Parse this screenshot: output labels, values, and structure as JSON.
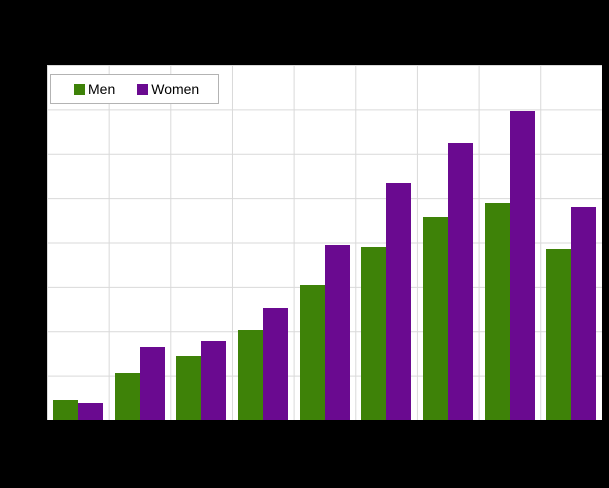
{
  "figure": {
    "background_color": "#000000",
    "plot_background_color": "#ffffff",
    "gridline_color": "#d9d9d9",
    "axis_tick_labels_visible": false,
    "title_visible": false
  },
  "legend": {
    "position": "top-left",
    "border_color": "#b3b3b3",
    "items": [
      {
        "label": "Men",
        "color": "#3E8208"
      },
      {
        "label": "Women",
        "color": "#6A0A90"
      }
    ]
  },
  "chart_data": {
    "type": "bar",
    "title": "",
    "xlabel": "",
    "ylabel": "",
    "categories": [
      "",
      "",
      "",
      "",
      "",
      "",
      "",
      "",
      ""
    ],
    "series": [
      {
        "name": "Men",
        "color": "#3E8208",
        "values": [
          5.7,
          13.3,
          18.1,
          25.4,
          38.0,
          48.8,
          57.3,
          61.0,
          48.2
        ]
      },
      {
        "name": "Women",
        "color": "#6A0A90",
        "values": [
          4.9,
          20.7,
          22.3,
          31.5,
          49.3,
          66.7,
          77.9,
          87.1,
          59.9
        ]
      }
    ],
    "units": "percent of y-axis span (tick labels not visible; 8 horizontal gridline intervals = 100)",
    "ylim": [
      0,
      100
    ],
    "y_gridline_intervals": 8,
    "x_gridline_intervals": 9,
    "grid": true,
    "legend_position": "top-left"
  }
}
